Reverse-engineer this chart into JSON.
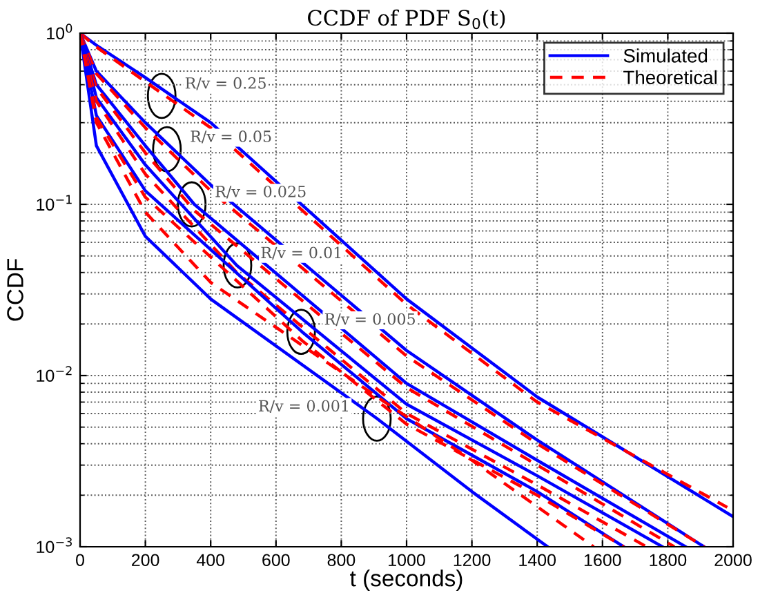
{
  "chart_data": {
    "type": "line",
    "title": "CCDF of PDF S$_{0}$(t)",
    "xlabel": "t (seconds)",
    "ylabel": "CCDF",
    "log": "y",
    "grid": true,
    "legend": "top right",
    "xlim": [
      0,
      2000
    ],
    "xticks": [
      0,
      200,
      400,
      600,
      800,
      1000,
      1200,
      1400,
      1600,
      1800,
      2000
    ],
    "ylim": [
      0.001,
      1
    ],
    "yticks": [
      {
        "value": 0.001,
        "label": "10$^{−3}$"
      },
      {
        "value": 0.01,
        "label": "10$^{−2}$"
      },
      {
        "value": 0.1,
        "label": "10$^{−1}$"
      },
      {
        "value": 1,
        "label": "10$^{0}$"
      }
    ],
    "series": [
      {
        "name": "Simulated",
        "color": "#0000ff",
        "line_style": "solid",
        "x": [
          0,
          50,
          200,
          400,
          1000,
          1400,
          2000
        ],
        "values": [
          1,
          0.85,
          0.55,
          0.3,
          0.028,
          0.0075,
          0.0015
        ]
      },
      {
        "name": "Theoretical",
        "color": "#ff0000",
        "line_style": "dashed",
        "x": [
          0,
          50,
          200,
          400,
          1000,
          1400,
          1982
        ],
        "values": [
          1,
          0.83,
          0.52,
          0.28,
          0.026,
          0.007,
          0.0017
        ]
      },
      {
        "color": "#0000ff",
        "line_style": "solid",
        "x": [
          0,
          50,
          200,
          400,
          1000,
          1400,
          1911
        ],
        "values": [
          1,
          0.6,
          0.3,
          0.13,
          0.014,
          0.0042,
          0.001
        ]
      },
      {
        "color": "#ff0000",
        "line_style": "dashed",
        "x": [
          0,
          50,
          200,
          400,
          1000,
          1400,
          1911
        ],
        "values": [
          1,
          0.58,
          0.28,
          0.12,
          0.013,
          0.004,
          0.001
        ]
      },
      {
        "color": "#0000ff",
        "line_style": "solid",
        "x": [
          0,
          50,
          200,
          350,
          1000,
          1400,
          1855
        ],
        "values": [
          1,
          0.5,
          0.22,
          0.1,
          0.009,
          0.0032,
          0.001
        ]
      },
      {
        "color": "#ff0000",
        "line_style": "dashed",
        "x": [
          0,
          50,
          200,
          350,
          1000,
          1400,
          1820
        ],
        "values": [
          1,
          0.48,
          0.2,
          0.092,
          0.0085,
          0.003,
          0.001
        ]
      },
      {
        "color": "#0000ff",
        "line_style": "solid",
        "x": [
          0,
          50,
          200,
          480,
          1000,
          1400,
          1784
        ],
        "values": [
          1,
          0.42,
          0.17,
          0.044,
          0.0068,
          0.0026,
          0.001
        ]
      },
      {
        "color": "#ff0000",
        "line_style": "dashed",
        "x": [
          0,
          50,
          200,
          480,
          1000,
          1400,
          1735
        ],
        "values": [
          1,
          0.4,
          0.15,
          0.04,
          0.006,
          0.0023,
          0.001
        ]
      },
      {
        "color": "#0000ff",
        "line_style": "solid",
        "x": [
          0,
          50,
          200,
          680,
          1000,
          1400,
          1665
        ],
        "values": [
          1,
          0.33,
          0.12,
          0.018,
          0.0056,
          0.0021,
          0.001
        ]
      },
      {
        "color": "#ff0000",
        "line_style": "dashed",
        "x": [
          0,
          50,
          200,
          680,
          1000,
          1400,
          1665
        ],
        "values": [
          1,
          0.32,
          0.11,
          0.016,
          0.0052,
          0.002,
          0.001
        ]
      },
      {
        "color": "#0000ff",
        "line_style": "solid",
        "x": [
          0,
          50,
          200,
          400,
          910,
          1200,
          1432
        ],
        "values": [
          1,
          0.22,
          0.065,
          0.028,
          0.0056,
          0.0021,
          0.001
        ]
      },
      {
        "color": "#ff0000",
        "line_style": "dashed",
        "x": [
          0,
          50,
          200,
          400,
          910,
          1200,
          1573
        ],
        "values": [
          1,
          0.3,
          0.09,
          0.035,
          0.0075,
          0.0032,
          0.001
        ]
      }
    ],
    "annotations": [
      {
        "text": "R/v = 0.25",
        "x": 250,
        "y": 0.43
      },
      {
        "text": "R/v = 0.05",
        "x": 266,
        "y": 0.21
      },
      {
        "text": "R/v = 0.025",
        "x": 342,
        "y": 0.1
      },
      {
        "text": "R/v = 0.01",
        "x": 482,
        "y": 0.044
      },
      {
        "text": "R/v = 0.005",
        "x": 677,
        "y": 0.018
      },
      {
        "text": "R/v = 0.001",
        "x": 909,
        "y": 0.0056
      }
    ]
  }
}
